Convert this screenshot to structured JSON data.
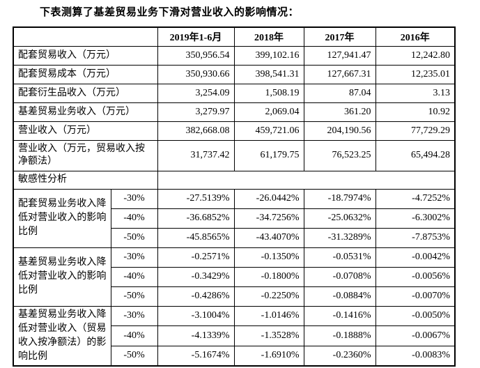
{
  "title": "下表测算了基差贸易业务下滑对营业收入的影响情况：",
  "table": {
    "columns": [
      "2019年1-6月",
      "2018年",
      "2017年",
      "2016年"
    ],
    "metric_rows": [
      {
        "label": "配套贸易收入（万元）",
        "values": [
          "350,956.54",
          "399,102.16",
          "127,941.47",
          "12,242.80"
        ]
      },
      {
        "label": "配套贸易成本（万元）",
        "values": [
          "350,930.66",
          "398,541.31",
          "127,667.31",
          "12,235.01"
        ]
      },
      {
        "label": "配套衍生品收入（万元）",
        "values": [
          "3,254.09",
          "1,508.19",
          "87.04",
          "3.13"
        ]
      },
      {
        "label": "基差贸易业务收入（万元）",
        "values": [
          "3,279.97",
          "2,069.04",
          "361.20",
          "10.92"
        ]
      },
      {
        "label": "营业收入（万元）",
        "values": [
          "382,668.08",
          "459,721.06",
          "204,190.56",
          "77,729.29"
        ]
      },
      {
        "label": "营业收入（万元，贸易收入按净额法）",
        "values": [
          "31,737.42",
          "61,179.75",
          "76,523.25",
          "65,494.28"
        ]
      }
    ],
    "section_header": "敏感性分析",
    "sensitivity_groups": [
      {
        "label": "配套贸易业务收入降低对营业收入的影响比例",
        "rows": [
          {
            "scenario": "-30%",
            "values": [
              "-27.5139%",
              "-26.0442%",
              "-18.7974%",
              "-4.7252%"
            ]
          },
          {
            "scenario": "-40%",
            "values": [
              "-36.6852%",
              "-34.7256%",
              "-25.0632%",
              "-6.3002%"
            ]
          },
          {
            "scenario": "-50%",
            "values": [
              "-45.8565%",
              "-43.4070%",
              "-31.3289%",
              "-7.8753%"
            ]
          }
        ]
      },
      {
        "label": "基差贸易业务收入降低对营业收入的影响比例",
        "rows": [
          {
            "scenario": "-30%",
            "values": [
              "-0.2571%",
              "-0.1350%",
              "-0.0531%",
              "-0.0042%"
            ]
          },
          {
            "scenario": "-40%",
            "values": [
              "-0.3429%",
              "-0.1800%",
              "-0.0708%",
              "-0.0056%"
            ]
          },
          {
            "scenario": "-50%",
            "values": [
              "-0.4286%",
              "-0.2250%",
              "-0.0884%",
              "-0.0070%"
            ]
          }
        ]
      },
      {
        "label": "基差贸易业务收入降低对营业收入（贸易收入按净额法）的影响比例",
        "rows": [
          {
            "scenario": "-30%",
            "values": [
              "-3.1004%",
              "-1.0146%",
              "-0.1416%",
              "-0.0050%"
            ]
          },
          {
            "scenario": "-40%",
            "values": [
              "-4.1339%",
              "-1.3528%",
              "-0.1888%",
              "-0.0067%"
            ]
          },
          {
            "scenario": "-50%",
            "values": [
              "-5.1674%",
              "-1.6910%",
              "-0.2360%",
              "-0.0083%"
            ]
          }
        ]
      }
    ]
  }
}
